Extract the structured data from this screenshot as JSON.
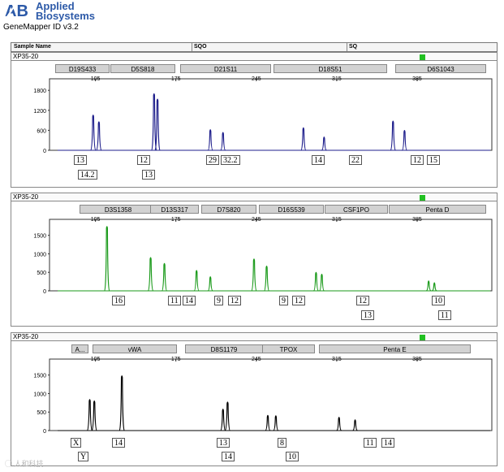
{
  "header": {
    "brand_line1": "Applied",
    "brand_line2": "Biosystems",
    "app_title": "GeneMapper ID v3.2",
    "columns": [
      "Sample Name",
      "SQO",
      "SQ"
    ]
  },
  "colors": {
    "blue": "#1f1f8c",
    "green": "#1a9a1a",
    "black": "#000000",
    "status": "#22c022"
  },
  "chart_data": [
    {
      "type": "line",
      "title": "XP35-20",
      "dye": "blue",
      "x_ticks": [
        105,
        175,
        245,
        315,
        385
      ],
      "y_ticks": [
        0,
        600,
        1200,
        1800
      ],
      "xlim": [
        65,
        450
      ],
      "ylim": [
        0,
        2000
      ],
      "loci": [
        "D19S433",
        "D5S818",
        "D21S11",
        "D18S51",
        "D6S1043"
      ],
      "peaks": [
        {
          "x": 103,
          "y": 1080
        },
        {
          "x": 108,
          "y": 880
        },
        {
          "x": 156,
          "y": 1720
        },
        {
          "x": 159,
          "y": 1560
        },
        {
          "x": 205,
          "y": 640
        },
        {
          "x": 216,
          "y": 560
        },
        {
          "x": 286,
          "y": 700
        },
        {
          "x": 304,
          "y": 420
        },
        {
          "x": 364,
          "y": 900
        },
        {
          "x": 374,
          "y": 620
        }
      ],
      "alleles": [
        "13",
        "14.2",
        "12",
        "13",
        "29",
        "32.2",
        "14",
        "22",
        "12",
        "15"
      ]
    },
    {
      "type": "line",
      "title": "XP35-20",
      "dye": "green",
      "x_ticks": [
        105,
        175,
        245,
        315,
        385
      ],
      "y_ticks": [
        0,
        500,
        1000,
        1500
      ],
      "xlim": [
        65,
        450
      ],
      "ylim": [
        0,
        1800
      ],
      "loci": [
        "D3S1358",
        "D13S317",
        "D7S820",
        "D16S539",
        "CSF1PO",
        "Penta D"
      ],
      "peaks": [
        {
          "x": 115,
          "y": 1760
        },
        {
          "x": 153,
          "y": 920
        },
        {
          "x": 165,
          "y": 760
        },
        {
          "x": 193,
          "y": 570
        },
        {
          "x": 205,
          "y": 400
        },
        {
          "x": 243,
          "y": 880
        },
        {
          "x": 254,
          "y": 690
        },
        {
          "x": 297,
          "y": 520
        },
        {
          "x": 302,
          "y": 470
        },
        {
          "x": 395,
          "y": 290
        },
        {
          "x": 400,
          "y": 240
        }
      ],
      "alleles": [
        "16",
        "11",
        "14",
        "9",
        "12",
        "9",
        "12",
        "12",
        "13",
        "10",
        "11"
      ]
    },
    {
      "type": "line",
      "title": "XP35-20",
      "dye": "black",
      "x_ticks": [
        105,
        175,
        245,
        315,
        385
      ],
      "y_ticks": [
        0,
        500,
        1000,
        1500
      ],
      "xlim": [
        65,
        450
      ],
      "ylim": [
        0,
        1800
      ],
      "loci": [
        "A...",
        "vWA",
        "D8S1179",
        "TPOX",
        "Penta E"
      ],
      "peaks": [
        {
          "x": 100,
          "y": 860
        },
        {
          "x": 104,
          "y": 820
        },
        {
          "x": 128,
          "y": 1500
        },
        {
          "x": 216,
          "y": 600
        },
        {
          "x": 220,
          "y": 790
        },
        {
          "x": 255,
          "y": 430
        },
        {
          "x": 262,
          "y": 420
        },
        {
          "x": 317,
          "y": 380
        },
        {
          "x": 331,
          "y": 310
        }
      ],
      "alleles": [
        "X",
        "Y",
        "14",
        "13",
        "14",
        "8",
        "10",
        "11",
        "14"
      ]
    }
  ],
  "watermark": "◯ 人和科技"
}
